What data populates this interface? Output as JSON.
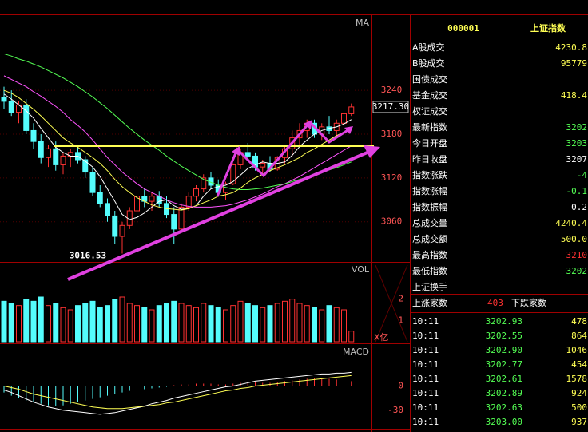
{
  "kline": {
    "label": "MA",
    "ylim": [
      3005,
      3343
    ],
    "yticks": [
      3060,
      3120,
      3180,
      3240
    ],
    "last_price": {
      "value": 3217.3,
      "label": "3217.30"
    },
    "low_label": {
      "value": 3016.53,
      "label": "3016.53"
    },
    "up_color": "#ff3232",
    "down_color": "#54fcfc",
    "candles": [
      [
        3230,
        3245,
        3215,
        3225
      ],
      [
        3225,
        3240,
        3205,
        3210
      ],
      [
        3210,
        3225,
        3195,
        3220
      ],
      [
        3220,
        3228,
        3180,
        3185
      ],
      [
        3185,
        3195,
        3160,
        3170
      ],
      [
        3170,
        3180,
        3140,
        3148
      ],
      [
        3148,
        3165,
        3135,
        3160
      ],
      [
        3160,
        3170,
        3130,
        3138
      ],
      [
        3138,
        3155,
        3125,
        3150
      ],
      [
        3150,
        3160,
        3135,
        3155
      ],
      [
        3155,
        3162,
        3140,
        3145
      ],
      [
        3145,
        3150,
        3120,
        3128
      ],
      [
        3128,
        3135,
        3095,
        3100
      ],
      [
        3100,
        3110,
        3080,
        3085
      ],
      [
        3085,
        3092,
        3060,
        3068
      ],
      [
        3068,
        3075,
        3030,
        3040
      ],
      [
        3040,
        3060,
        3016.53,
        3055
      ],
      [
        3055,
        3080,
        3050,
        3075
      ],
      [
        3075,
        3100,
        3070,
        3095
      ],
      [
        3095,
        3105,
        3080,
        3088
      ],
      [
        3088,
        3100,
        3075,
        3095
      ],
      [
        3095,
        3102,
        3080,
        3085
      ],
      [
        3085,
        3095,
        3065,
        3070
      ],
      [
        3070,
        3080,
        3030,
        3050
      ],
      [
        3050,
        3085,
        3045,
        3080
      ],
      [
        3080,
        3100,
        3075,
        3095
      ],
      [
        3095,
        3110,
        3088,
        3105
      ],
      [
        3105,
        3125,
        3100,
        3120
      ],
      [
        3120,
        3128,
        3105,
        3110
      ],
      [
        3110,
        3118,
        3095,
        3100
      ],
      [
        3100,
        3115,
        3090,
        3112
      ],
      [
        3112,
        3140,
        3110,
        3138
      ],
      [
        3138,
        3160,
        3132,
        3155
      ],
      [
        3155,
        3168,
        3145,
        3150
      ],
      [
        3150,
        3155,
        3130,
        3135
      ],
      [
        3135,
        3145,
        3125,
        3140
      ],
      [
        3140,
        3150,
        3128,
        3132
      ],
      [
        3132,
        3150,
        3130,
        3148
      ],
      [
        3148,
        3165,
        3140,
        3160
      ],
      [
        3160,
        3185,
        3150,
        3175
      ],
      [
        3175,
        3195,
        3165,
        3185
      ],
      [
        3185,
        3200,
        3175,
        3195
      ],
      [
        3195,
        3200,
        3175,
        3180
      ],
      [
        3180,
        3195,
        3172,
        3190
      ],
      [
        3190,
        3205,
        3180,
        3185
      ],
      [
        3185,
        3200,
        3178,
        3195
      ],
      [
        3195,
        3215,
        3188,
        3208
      ],
      [
        3208,
        3222,
        3205,
        3217.3
      ]
    ],
    "ma": [
      {
        "color": "#ffffff",
        "values": [
          3235,
          3228,
          3220,
          3212,
          3202,
          3188,
          3175,
          3162,
          3155,
          3150,
          3150,
          3143,
          3135,
          3122,
          3105,
          3088,
          3070,
          3063,
          3066,
          3072,
          3080,
          3088,
          3090,
          3082,
          3077,
          3078,
          3082,
          3095,
          3105,
          3108,
          3110,
          3115,
          3124,
          3133,
          3138,
          3142,
          3140,
          3140,
          3142,
          3151,
          3163,
          3172,
          3180,
          3185,
          3188,
          3190,
          3194,
          3200
        ]
      },
      {
        "color": "#ffff54",
        "values": [
          3240,
          3236,
          3230,
          3222,
          3214,
          3205,
          3195,
          3185,
          3175,
          3168,
          3162,
          3155,
          3148,
          3140,
          3130,
          3118,
          3108,
          3100,
          3093,
          3088,
          3083,
          3080,
          3078,
          3077,
          3076,
          3078,
          3082,
          3086,
          3090,
          3095,
          3097,
          3100,
          3106,
          3114,
          3120,
          3125,
          3130,
          3134,
          3138,
          3143,
          3148,
          3155,
          3160,
          3166,
          3172,
          3178,
          3183,
          3190
        ]
      },
      {
        "color": "#ff54ff",
        "values": [
          3260,
          3255,
          3250,
          3245,
          3238,
          3232,
          3225,
          3218,
          3210,
          3200,
          3192,
          3183,
          3172,
          3160,
          3148,
          3138,
          3128,
          3120,
          3112,
          3105,
          3100,
          3095,
          3090,
          3086,
          3083,
          3081,
          3080,
          3080,
          3080,
          3081,
          3082,
          3084,
          3087,
          3090,
          3094,
          3098,
          3103,
          3108,
          3112,
          3117,
          3122,
          3128,
          3134,
          3140,
          3146,
          3152,
          3158,
          3164
        ]
      },
      {
        "color": "#54ff54",
        "values": [
          3290,
          3287,
          3283,
          3280,
          3276,
          3272,
          3267,
          3262,
          3257,
          3251,
          3245,
          3238,
          3231,
          3223,
          3215,
          3206,
          3197,
          3188,
          3180,
          3172,
          3165,
          3158,
          3150,
          3143,
          3136,
          3130,
          3124,
          3118,
          3114,
          3110,
          3107,
          3105,
          3104,
          3104,
          3105,
          3106,
          3108,
          3110,
          3112,
          3115,
          3118,
          3121,
          3124,
          3127,
          3131,
          3134,
          3138,
          3142
        ]
      }
    ]
  },
  "volume": {
    "label": "VOL",
    "unit": "X亿",
    "ylim": [
      0,
      3.6
    ],
    "yticks": [
      1,
      2
    ],
    "values": [
      1.9,
      1.8,
      1.7,
      2.0,
      1.9,
      2.1,
      1.7,
      1.8,
      1.6,
      1.5,
      1.7,
      1.8,
      1.9,
      1.6,
      1.7,
      2.0,
      2.1,
      1.8,
      1.7,
      1.6,
      1.5,
      1.7,
      1.8,
      1.9,
      1.8,
      1.7,
      1.6,
      1.8,
      1.7,
      1.6,
      1.5,
      1.7,
      1.9,
      1.8,
      1.7,
      1.6,
      1.7,
      1.8,
      1.9,
      2.0,
      1.8,
      1.7,
      1.6,
      1.5,
      1.7,
      1.6,
      1.5,
      0.5
    ]
  },
  "macd": {
    "label": "MACD",
    "ylim": [
      -53,
      50
    ],
    "yticks": [
      0,
      -30
    ],
    "hist": [
      -8,
      -12,
      -15,
      -18,
      -20,
      -22,
      -24,
      -25,
      -24,
      -22,
      -20,
      -18,
      -16,
      -14,
      -12,
      -10,
      -8,
      -6,
      -5,
      -4,
      -3,
      -2,
      -1,
      1,
      2,
      2,
      3,
      3,
      3,
      2,
      2,
      3,
      4,
      5,
      5,
      4,
      4,
      5,
      6,
      7,
      8,
      9,
      10,
      10,
      9,
      8,
      7,
      6
    ],
    "dif": {
      "color": "#ffffff",
      "values": [
        -5,
        -8,
        -12,
        -16,
        -20,
        -23,
        -26,
        -28,
        -30,
        -31,
        -32,
        -33,
        -34,
        -35,
        -34,
        -33,
        -31,
        -29,
        -27,
        -25,
        -22,
        -20,
        -18,
        -15,
        -13,
        -11,
        -9,
        -7,
        -5,
        -3,
        -1,
        0,
        2,
        4,
        6,
        7,
        8,
        9,
        10,
        11,
        12,
        13,
        14,
        15,
        15,
        16,
        16,
        17
      ]
    },
    "dea": {
      "color": "#ffff54",
      "values": [
        0,
        -2,
        -4,
        -7,
        -10,
        -12,
        -14,
        -16,
        -18,
        -20,
        -22,
        -24,
        -26,
        -27,
        -28,
        -28,
        -28,
        -27,
        -26,
        -25,
        -24,
        -23,
        -21,
        -20,
        -18,
        -16,
        -14,
        -12,
        -10,
        -8,
        -6,
        -5,
        -3,
        -2,
        0,
        1,
        2,
        3,
        4,
        5,
        6,
        7,
        8,
        9,
        10,
        11,
        12,
        13
      ]
    }
  },
  "panel": {
    "code": "000001",
    "name": "上证指数",
    "rows": [
      {
        "label": "A股成交",
        "value": "4230.8",
        "color": "#ffff54"
      },
      {
        "label": "B股成交",
        "value": "95779",
        "color": "#ffff54"
      },
      {
        "label": "国债成交"
      },
      {
        "label": "基金成交",
        "value": "418.4",
        "color": "#ffff54"
      },
      {
        "label": "权证成交"
      },
      {
        "label": "最新指数",
        "value": "3202",
        "color": "#54ff54"
      },
      {
        "label": "今日开盘",
        "value": "3203",
        "color": "#54ff54"
      },
      {
        "label": "昨日收盘",
        "value": "3207",
        "color": "#ffffff"
      },
      {
        "label": "指数涨跌",
        "value": "-4",
        "color": "#54ff54"
      },
      {
        "label": "指数涨幅",
        "value": "-0.1",
        "color": "#54ff54"
      },
      {
        "label": "指数振幅",
        "value": "0.2",
        "color": "#ffffff"
      },
      {
        "label": "总成交量",
        "value": "4240.4",
        "color": "#ffff54"
      },
      {
        "label": "总成交额",
        "value": "500.0",
        "color": "#ffff54"
      },
      {
        "label": "最高指数",
        "value": "3210",
        "color": "#ff3232"
      },
      {
        "label": "最低指数",
        "value": "3202",
        "color": "#54ff54"
      },
      {
        "label": "上证换手"
      }
    ],
    "advance_label": "上涨家数",
    "advance": "403",
    "decline_label": "下跌家数",
    "ticks": [
      [
        "10:11",
        "3202.93",
        "478"
      ],
      [
        "10:11",
        "3202.55",
        "864"
      ],
      [
        "10:11",
        "3202.90",
        "1046"
      ],
      [
        "10:11",
        "3202.77",
        "454"
      ],
      [
        "10:11",
        "3202.61",
        "1578"
      ],
      [
        "10:11",
        "3202.89",
        "924"
      ],
      [
        "10:11",
        "3202.63",
        "500"
      ],
      [
        "10:11",
        "3203.00",
        "937"
      ]
    ]
  }
}
